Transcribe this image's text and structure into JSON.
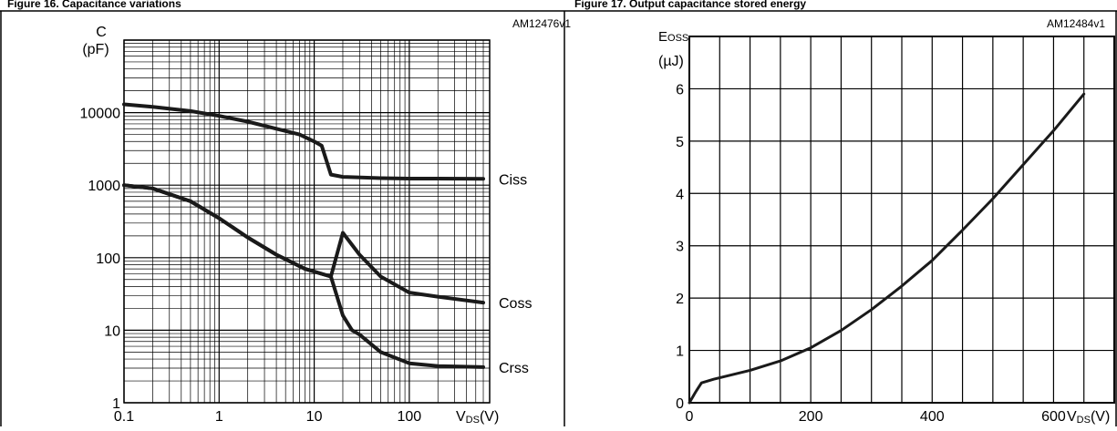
{
  "header": {
    "left_caption": "Figure 16. Capacitance variations",
    "right_caption": "Figure 17. Output capacitance stored energy"
  },
  "chart_data": [
    {
      "type": "line",
      "id": "AM12476v1",
      "x_scale": "log",
      "y_scale": "log",
      "xlim": [
        0.1,
        700
      ],
      "ylim": [
        1,
        100000
      ],
      "xlabel": "VDS(V)",
      "ylabel": "C (pF)",
      "x_ticks": [
        {
          "value": 0.1,
          "label": "0.1"
        },
        {
          "value": 1,
          "label": "1"
        },
        {
          "value": 10,
          "label": "10"
        },
        {
          "value": 100,
          "label": "100"
        }
      ],
      "y_ticks": [
        {
          "value": 1,
          "label": "1"
        },
        {
          "value": 10,
          "label": "10"
        },
        {
          "value": 100,
          "label": "100"
        },
        {
          "value": 1000,
          "label": "1000"
        },
        {
          "value": 10000,
          "label": "10000"
        }
      ],
      "grid": true,
      "series": [
        {
          "name": "Ciss",
          "x": [
            0.1,
            0.2,
            0.5,
            1,
            2,
            4,
            7,
            10,
            12,
            15,
            20,
            50,
            100,
            200,
            600
          ],
          "y": [
            13000,
            12000,
            10500,
            9000,
            7500,
            6000,
            5000,
            4000,
            3500,
            1400,
            1300,
            1250,
            1230,
            1230,
            1220
          ]
        },
        {
          "name": "Coss",
          "x": [
            0.1,
            0.2,
            0.5,
            1,
            2,
            4,
            8,
            15,
            20,
            30,
            50,
            100,
            200,
            600
          ],
          "y": [
            1000,
            900,
            600,
            350,
            190,
            110,
            70,
            55,
            220,
            110,
            55,
            33,
            29,
            24
          ]
        },
        {
          "name": "Crss",
          "x": [
            0.1,
            0.2,
            0.5,
            1,
            2,
            4,
            8,
            15,
            20,
            25,
            30,
            50,
            100,
            200,
            600
          ],
          "y": [
            1000,
            900,
            600,
            350,
            190,
            110,
            70,
            55,
            16,
            10,
            8.7,
            5,
            3.5,
            3.2,
            3.1
          ]
        }
      ]
    },
    {
      "type": "line",
      "id": "AM12484v1",
      "x_scale": "linear",
      "y_scale": "linear",
      "xlim": [
        0,
        700
      ],
      "ylim": [
        0,
        7
      ],
      "xlabel": "VDS(V)",
      "ylabel": "Eoss (µJ)",
      "x_ticks": [
        {
          "value": 0,
          "label": "0"
        },
        {
          "value": 200,
          "label": "200"
        },
        {
          "value": 400,
          "label": "400"
        },
        {
          "value": 600,
          "label": "600"
        }
      ],
      "y_ticks": [
        {
          "value": 0,
          "label": "0"
        },
        {
          "value": 1,
          "label": "1"
        },
        {
          "value": 2,
          "label": "2"
        },
        {
          "value": 3,
          "label": "3"
        },
        {
          "value": 4,
          "label": "4"
        },
        {
          "value": 5,
          "label": "5"
        },
        {
          "value": 6,
          "label": "6"
        }
      ],
      "grid": true,
      "series": [
        {
          "name": "",
          "x": [
            0,
            10,
            20,
            40,
            100,
            150,
            200,
            250,
            300,
            350,
            400,
            450,
            500,
            550,
            600,
            650
          ],
          "y": [
            0,
            0.2,
            0.38,
            0.45,
            0.62,
            0.8,
            1.05,
            1.38,
            1.78,
            2.23,
            2.72,
            3.3,
            3.9,
            4.55,
            5.2,
            5.9
          ]
        }
      ]
    }
  ]
}
